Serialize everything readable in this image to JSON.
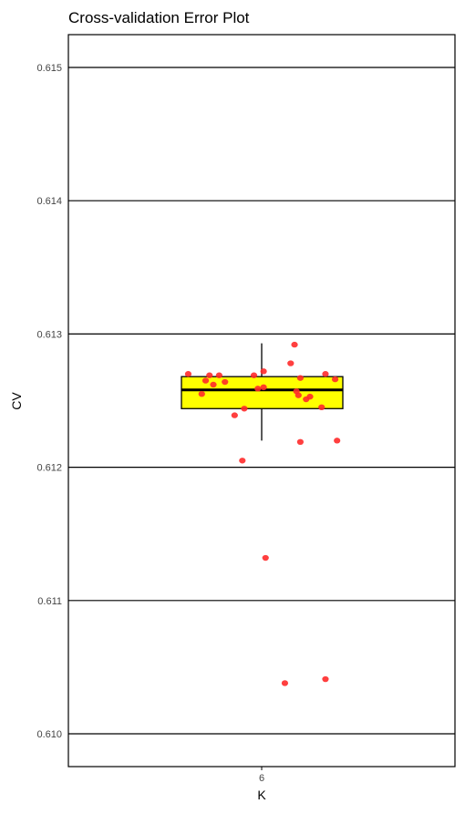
{
  "chart_data": {
    "type": "box",
    "title": "Cross-validation Error Plot",
    "xlabel": "K",
    "ylabel": "CV",
    "categories": [
      "6"
    ],
    "ylim": [
      0.6097,
      0.6152
    ],
    "yticks": [
      0.61,
      0.611,
      0.612,
      0.613,
      0.614,
      0.615
    ],
    "ytick_labels": [
      "0.610",
      "0.611",
      "0.612",
      "0.613",
      "0.614",
      "0.615"
    ],
    "grid": true,
    "box": {
      "category": "6",
      "q1": 0.61244,
      "median": 0.61258,
      "q3": 0.61268,
      "whisker_low": 0.6122,
      "whisker_high": 0.61293
    },
    "points": [
      {
        "x_offset": -0.38,
        "y": 0.6127
      },
      {
        "x_offset": -0.31,
        "y": 0.61255
      },
      {
        "x_offset": -0.29,
        "y": 0.61265
      },
      {
        "x_offset": -0.27,
        "y": 0.61269
      },
      {
        "x_offset": -0.25,
        "y": 0.61262
      },
      {
        "x_offset": -0.22,
        "y": 0.61269
      },
      {
        "x_offset": -0.19,
        "y": 0.61264
      },
      {
        "x_offset": -0.14,
        "y": 0.61239
      },
      {
        "x_offset": -0.09,
        "y": 0.61244
      },
      {
        "x_offset": -0.1,
        "y": 0.61205
      },
      {
        "x_offset": -0.04,
        "y": 0.61269
      },
      {
        "x_offset": -0.02,
        "y": 0.61259
      },
      {
        "x_offset": 0.01,
        "y": 0.6126
      },
      {
        "x_offset": 0.01,
        "y": 0.61272
      },
      {
        "x_offset": 0.02,
        "y": 0.61132
      },
      {
        "x_offset": 0.12,
        "y": 0.61038
      },
      {
        "x_offset": 0.15,
        "y": 0.61278
      },
      {
        "x_offset": 0.17,
        "y": 0.61292
      },
      {
        "x_offset": 0.18,
        "y": 0.61257
      },
      {
        "x_offset": 0.19,
        "y": 0.61254
      },
      {
        "x_offset": 0.2,
        "y": 0.61267
      },
      {
        "x_offset": 0.2,
        "y": 0.61219
      },
      {
        "x_offset": 0.23,
        "y": 0.61251
      },
      {
        "x_offset": 0.25,
        "y": 0.61253
      },
      {
        "x_offset": 0.31,
        "y": 0.61245
      },
      {
        "x_offset": 0.33,
        "y": 0.6127
      },
      {
        "x_offset": 0.33,
        "y": 0.61041
      },
      {
        "x_offset": 0.38,
        "y": 0.61266
      },
      {
        "x_offset": 0.39,
        "y": 0.6122
      }
    ],
    "colors": {
      "box_fill": "#ffff00",
      "box_stroke": "#000000",
      "point": "#ff2a2a",
      "grid": "#000000",
      "panel_border": "#000000"
    }
  }
}
